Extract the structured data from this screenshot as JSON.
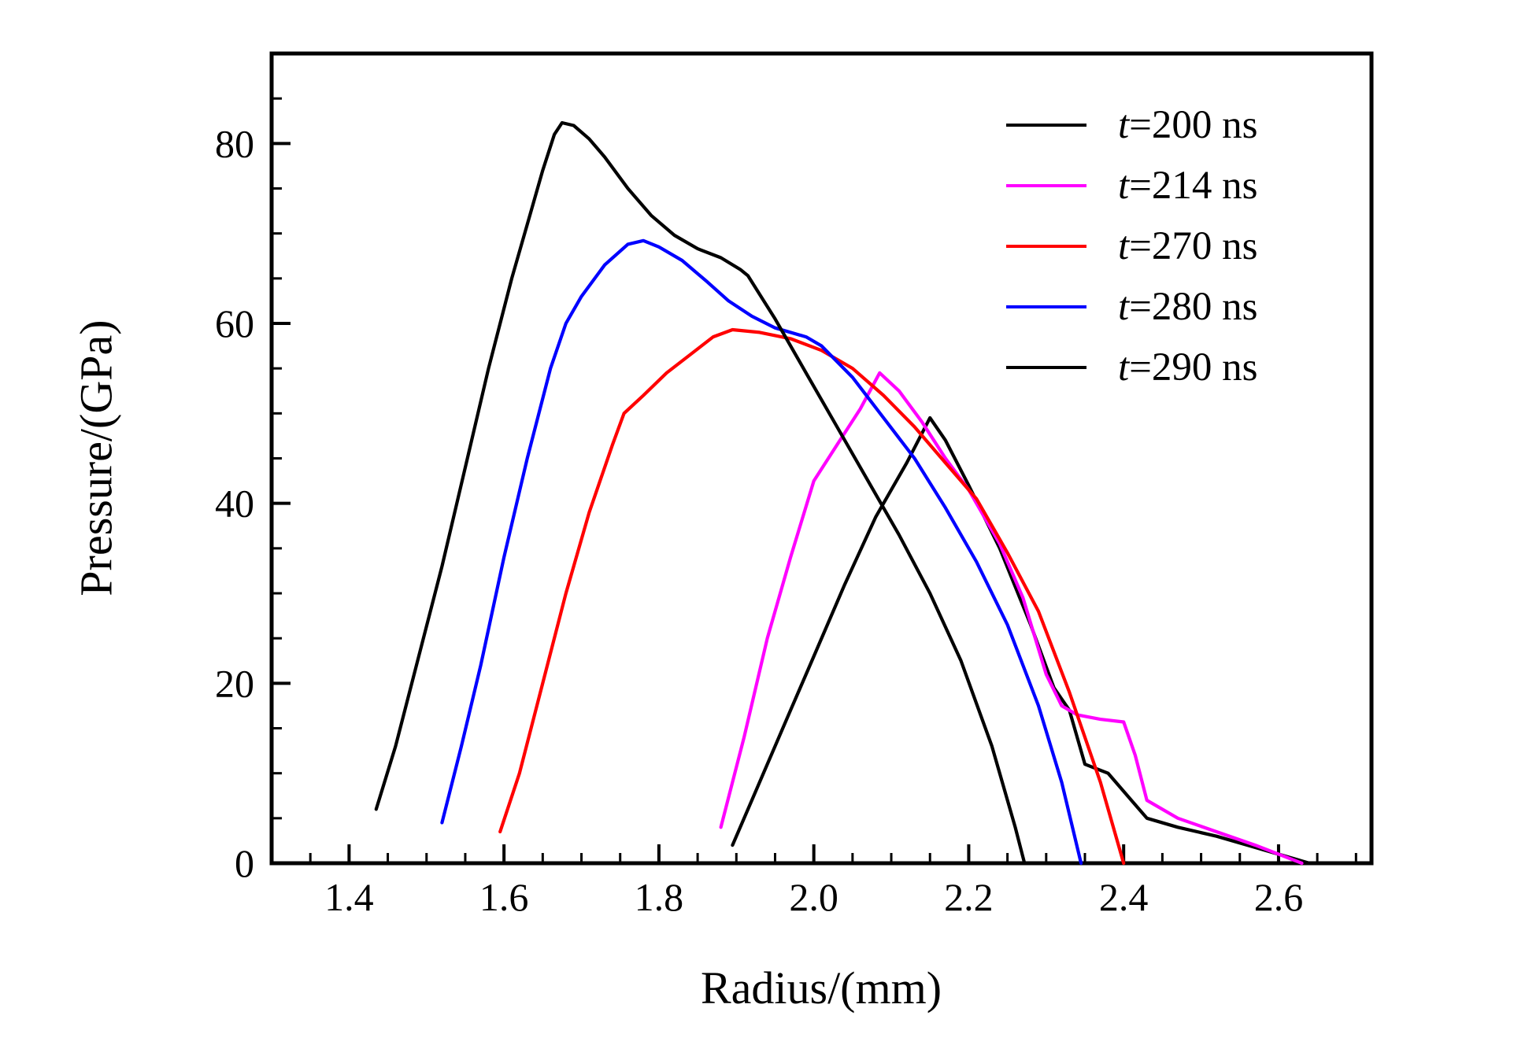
{
  "figure": {
    "background": "#ffffff",
    "axis_color": "#000000"
  },
  "chart_data": {
    "type": "line",
    "title": "",
    "xlabel": "Radius/(mm)",
    "ylabel": "Pressure/(GPa)",
    "xlim": [
      1.3,
      2.72
    ],
    "ylim": [
      0,
      90
    ],
    "grid": false,
    "legend_position": "top-right-inside",
    "x_ticks": {
      "major": [
        1.4,
        1.6,
        1.8,
        2.0,
        2.2,
        2.4,
        2.6
      ],
      "labels": [
        "1.4",
        "1.6",
        "1.8",
        "2.0",
        "2.2",
        "2.4",
        "2.6"
      ],
      "minor_step": 0.05
    },
    "y_ticks": {
      "major": [
        0,
        20,
        40,
        60,
        80
      ],
      "labels": [
        "0",
        "20",
        "40",
        "60",
        "80"
      ],
      "minor_step": 5
    },
    "series": [
      {
        "name": "t=200 ns",
        "legend_var": "t",
        "legend_rest": "=200 ns",
        "color": "#000000",
        "points": [
          [
            1.895,
            2
          ],
          [
            1.93,
            9
          ],
          [
            1.97,
            17
          ],
          [
            2.0,
            23
          ],
          [
            2.04,
            31
          ],
          [
            2.08,
            38.5
          ],
          [
            2.12,
            44.5
          ],
          [
            2.15,
            49.5
          ],
          [
            2.17,
            47
          ],
          [
            2.2,
            42
          ],
          [
            2.24,
            35
          ],
          [
            2.28,
            26.5
          ],
          [
            2.31,
            19.5
          ],
          [
            2.33,
            17
          ],
          [
            2.35,
            11
          ],
          [
            2.38,
            10
          ],
          [
            2.41,
            7
          ],
          [
            2.43,
            5
          ],
          [
            2.47,
            4
          ],
          [
            2.52,
            3
          ],
          [
            2.58,
            1.5
          ],
          [
            2.64,
            0
          ]
        ]
      },
      {
        "name": "t=214 ns",
        "legend_var": "t",
        "legend_rest": "=214 ns",
        "color": "#ff00ff",
        "points": [
          [
            1.88,
            4
          ],
          [
            1.91,
            14
          ],
          [
            1.94,
            25
          ],
          [
            1.97,
            34
          ],
          [
            2.0,
            42.5
          ],
          [
            2.03,
            46.5
          ],
          [
            2.06,
            50.5
          ],
          [
            2.085,
            54.5
          ],
          [
            2.11,
            52.5
          ],
          [
            2.14,
            49
          ],
          [
            2.17,
            45
          ],
          [
            2.2,
            41.5
          ],
          [
            2.24,
            35.5
          ],
          [
            2.27,
            29.5
          ],
          [
            2.3,
            21
          ],
          [
            2.32,
            17.5
          ],
          [
            2.34,
            16.5
          ],
          [
            2.37,
            16
          ],
          [
            2.4,
            15.7
          ],
          [
            2.415,
            12
          ],
          [
            2.43,
            7
          ],
          [
            2.47,
            5
          ],
          [
            2.52,
            3.5
          ],
          [
            2.57,
            2
          ],
          [
            2.63,
            0
          ]
        ]
      },
      {
        "name": "t=270 ns",
        "legend_var": "t",
        "legend_rest": "=270 ns",
        "color": "#ff0000",
        "points": [
          [
            1.595,
            3.5
          ],
          [
            1.62,
            10
          ],
          [
            1.65,
            20
          ],
          [
            1.68,
            30
          ],
          [
            1.71,
            39
          ],
          [
            1.74,
            46.5
          ],
          [
            1.755,
            50
          ],
          [
            1.78,
            52
          ],
          [
            1.81,
            54.5
          ],
          [
            1.84,
            56.5
          ],
          [
            1.87,
            58.5
          ],
          [
            1.895,
            59.3
          ],
          [
            1.93,
            59
          ],
          [
            1.97,
            58.3
          ],
          [
            2.01,
            57
          ],
          [
            2.05,
            55
          ],
          [
            2.09,
            52
          ],
          [
            2.13,
            48.5
          ],
          [
            2.17,
            44.5
          ],
          [
            2.21,
            40.5
          ],
          [
            2.25,
            34.5
          ],
          [
            2.29,
            28
          ],
          [
            2.33,
            19
          ],
          [
            2.37,
            9
          ],
          [
            2.4,
            0
          ]
        ]
      },
      {
        "name": "t=280 ns",
        "legend_var": "t",
        "legend_rest": "=280 ns",
        "color": "#0000ff",
        "points": [
          [
            1.52,
            4.5
          ],
          [
            1.545,
            13
          ],
          [
            1.57,
            22
          ],
          [
            1.6,
            34
          ],
          [
            1.63,
            45
          ],
          [
            1.66,
            55
          ],
          [
            1.68,
            60
          ],
          [
            1.7,
            63
          ],
          [
            1.73,
            66.5
          ],
          [
            1.76,
            68.8
          ],
          [
            1.78,
            69.2
          ],
          [
            1.8,
            68.5
          ],
          [
            1.83,
            67
          ],
          [
            1.86,
            64.8
          ],
          [
            1.89,
            62.5
          ],
          [
            1.92,
            60.8
          ],
          [
            1.95,
            59.5
          ],
          [
            1.99,
            58.5
          ],
          [
            2.01,
            57.5
          ],
          [
            2.05,
            54
          ],
          [
            2.09,
            49.5
          ],
          [
            2.13,
            45
          ],
          [
            2.17,
            39.5
          ],
          [
            2.21,
            33.5
          ],
          [
            2.25,
            26.5
          ],
          [
            2.29,
            17.5
          ],
          [
            2.32,
            9
          ],
          [
            2.345,
            0
          ]
        ]
      },
      {
        "name": "t=290 ns",
        "legend_var": "t",
        "legend_rest": "=290 ns",
        "color": "#000000",
        "points": [
          [
            1.435,
            6
          ],
          [
            1.46,
            13
          ],
          [
            1.49,
            23
          ],
          [
            1.52,
            33
          ],
          [
            1.55,
            44
          ],
          [
            1.58,
            55
          ],
          [
            1.61,
            65
          ],
          [
            1.63,
            71
          ],
          [
            1.65,
            77
          ],
          [
            1.665,
            81
          ],
          [
            1.675,
            82.3
          ],
          [
            1.69,
            82
          ],
          [
            1.71,
            80.5
          ],
          [
            1.73,
            78.5
          ],
          [
            1.76,
            75
          ],
          [
            1.79,
            72
          ],
          [
            1.82,
            69.8
          ],
          [
            1.85,
            68.3
          ],
          [
            1.88,
            67.3
          ],
          [
            1.905,
            66
          ],
          [
            1.915,
            65.3
          ],
          [
            1.95,
            60.5
          ],
          [
            1.99,
            54.5
          ],
          [
            2.03,
            48.5
          ],
          [
            2.07,
            42.5
          ],
          [
            2.11,
            36.5
          ],
          [
            2.15,
            30
          ],
          [
            2.19,
            22.5
          ],
          [
            2.23,
            13
          ],
          [
            2.26,
            4
          ],
          [
            2.272,
            0
          ]
        ]
      }
    ]
  }
}
